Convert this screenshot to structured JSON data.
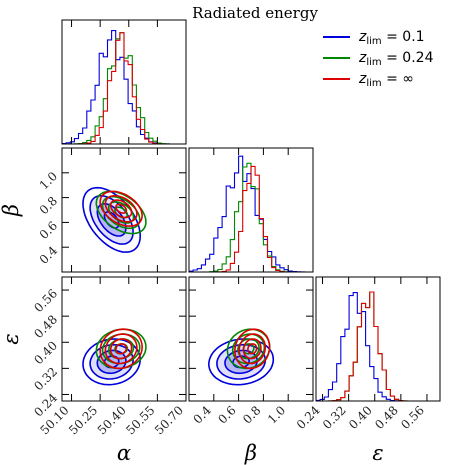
{
  "chart_data": {
    "type": "corner",
    "title": "Radiated energy",
    "parameters": [
      {
        "name": "alpha",
        "label": "α",
        "range": [
          0.05,
          0.7
        ],
        "ticks": [
          "0.10",
          "0.25",
          "0.40",
          "0.55",
          "0.70"
        ],
        "tick_values": [
          0.1,
          0.25,
          0.4,
          0.55,
          0.7
        ],
        "tick_prefix": "5"
      },
      {
        "name": "beta",
        "label": "β",
        "range": [
          0.2,
          1.2
        ],
        "ticks": [
          "0.4",
          "0.6",
          "0.8",
          "1.0"
        ],
        "tick_values": [
          0.4,
          0.6,
          0.8,
          1.0
        ]
      },
      {
        "name": "epsilon",
        "label": "ε",
        "range": [
          0.22,
          0.6
        ],
        "ticks": [
          "0.24",
          "0.32",
          "0.40",
          "0.48",
          "0.56"
        ],
        "tick_values": [
          0.24,
          0.32,
          0.4,
          0.48,
          0.56
        ]
      }
    ],
    "series": [
      {
        "name": "z_lim = 0.1",
        "legend_main": "z",
        "legend_sub": "lim",
        "legend_value": " = 0.1",
        "color": "#0000dd",
        "mean": [
          0.31,
          0.62,
          0.34
        ],
        "sd": [
          0.075,
          0.13,
          0.035
        ],
        "corr": [
          [
            1,
            -0.5,
            0.1
          ],
          [
            -0.5,
            1,
            0.1
          ],
          [
            0.1,
            0.1,
            1
          ]
        ]
      },
      {
        "name": "z_lim = 0.24",
        "legend_main": "z",
        "legend_sub": "lim",
        "legend_value": " = 0.24",
        "color": "#008800",
        "mean": [
          0.36,
          0.68,
          0.38
        ],
        "sd": [
          0.065,
          0.085,
          0.03
        ],
        "corr": [
          [
            1,
            -0.45,
            0.1
          ],
          [
            -0.45,
            1,
            0.1
          ],
          [
            0.1,
            0.1,
            1
          ]
        ]
      },
      {
        "name": "z_lim = ∞",
        "legend_main": "z",
        "legend_sub": "lim",
        "legend_value": " = ∞",
        "color": "#dd0000",
        "mean": [
          0.36,
          0.71,
          0.38
        ],
        "sd": [
          0.055,
          0.07,
          0.03
        ],
        "corr": [
          [
            1,
            -0.4,
            0.1
          ],
          [
            -0.4,
            1,
            0.1
          ],
          [
            0.1,
            0.1,
            1
          ]
        ]
      }
    ],
    "contour_levels_sigma": [
      0.5,
      1.0,
      1.5,
      2.0
    ],
    "legend_placement": "top-right",
    "grid": false
  }
}
